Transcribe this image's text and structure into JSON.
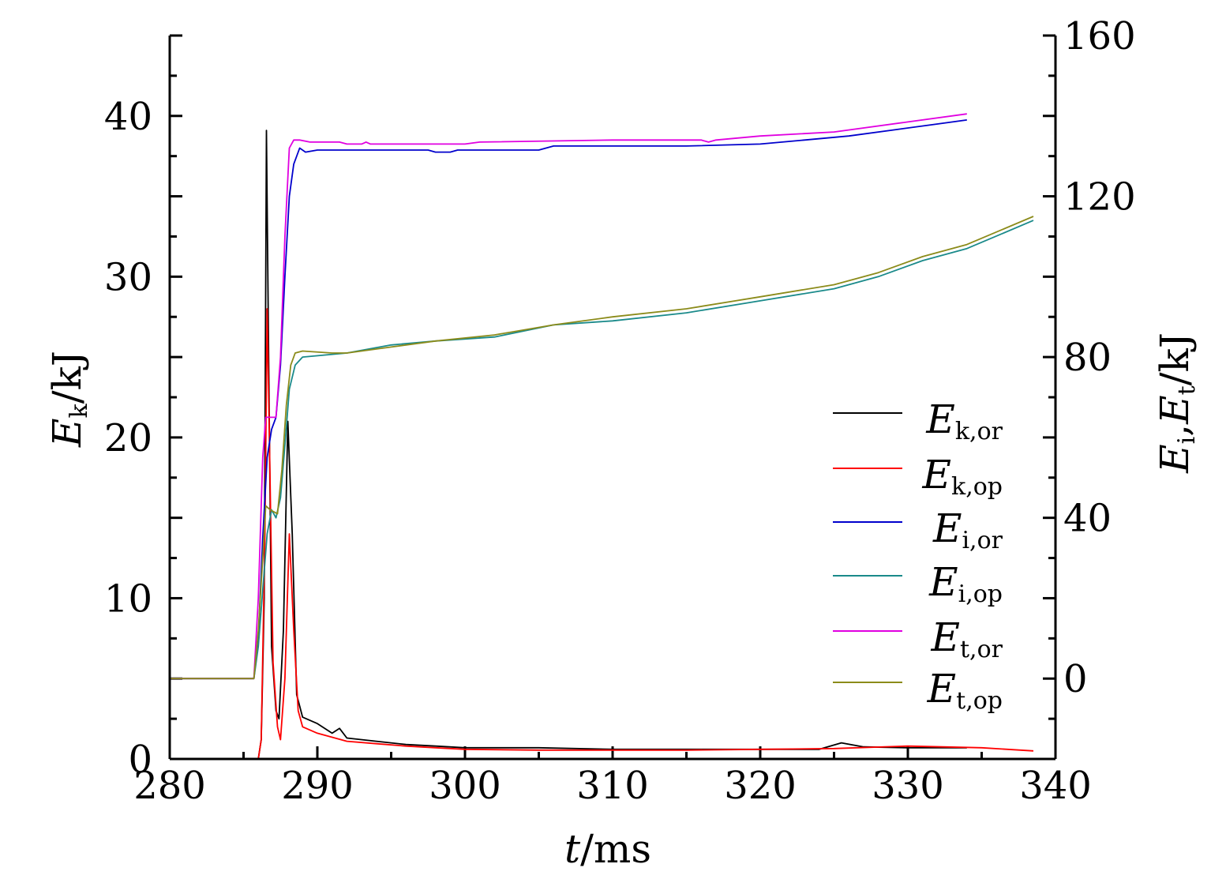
{
  "chart_data": {
    "type": "line",
    "x_axis": {
      "label_var": "t",
      "label_unit": "/ms",
      "range": [
        280,
        340
      ],
      "ticks": [
        "280",
        "290",
        "300",
        "310",
        "320",
        "330",
        "340"
      ],
      "tick_values": [
        280,
        290,
        300,
        310,
        320,
        330,
        340
      ]
    },
    "y_left": {
      "label_var": "E",
      "label_sub": "k",
      "label_unit": "/kJ",
      "range": [
        0,
        45
      ],
      "ticks": [
        "0",
        "10",
        "20",
        "30",
        "40"
      ],
      "tick_values": [
        0,
        10,
        20,
        30,
        40
      ]
    },
    "y_right": {
      "label_var1": "E",
      "label_sub1": "i",
      "label_sep": ",",
      "label_var2": "E",
      "label_sub2": "t",
      "label_unit": "/kJ",
      "range": [
        -20,
        160
      ],
      "ticks": [
        "0",
        "40",
        "80",
        "120",
        "160"
      ],
      "tick_values": [
        0,
        40,
        80,
        120,
        160
      ]
    },
    "grid": false,
    "legend_position": "right-middle",
    "series": [
      {
        "name_var": "E",
        "name_sub": "k,or",
        "axis": "left",
        "color": "#000000",
        "points": [
          [
            280,
            0
          ],
          [
            286.0,
            0
          ],
          [
            286.2,
            1.2
          ],
          [
            286.4,
            10
          ],
          [
            286.55,
            39.1
          ],
          [
            286.7,
            25
          ],
          [
            286.9,
            7
          ],
          [
            287.2,
            3
          ],
          [
            287.4,
            2.5
          ],
          [
            287.7,
            8
          ],
          [
            288.0,
            21
          ],
          [
            288.3,
            14
          ],
          [
            288.6,
            4
          ],
          [
            289.0,
            2.6
          ],
          [
            290,
            2.2
          ],
          [
            291,
            1.6
          ],
          [
            291.5,
            1.9
          ],
          [
            292,
            1.3
          ],
          [
            294,
            1.1
          ],
          [
            296,
            0.9
          ],
          [
            298,
            0.8
          ],
          [
            300,
            0.7
          ],
          [
            305,
            0.7
          ],
          [
            310,
            0.6
          ],
          [
            315,
            0.6
          ],
          [
            320,
            0.6
          ],
          [
            324,
            0.6
          ],
          [
            325.5,
            1.0
          ],
          [
            327,
            0.75
          ],
          [
            330,
            0.7
          ],
          [
            334,
            0.7
          ]
        ]
      },
      {
        "name_var": "E",
        "name_sub": "k,op",
        "axis": "left",
        "color": "#ff0000",
        "points": [
          [
            280,
            0
          ],
          [
            286.0,
            0
          ],
          [
            286.2,
            1.2
          ],
          [
            286.45,
            14
          ],
          [
            286.6,
            28
          ],
          [
            286.75,
            20
          ],
          [
            287.0,
            6
          ],
          [
            287.3,
            2
          ],
          [
            287.5,
            1.2
          ],
          [
            287.8,
            5
          ],
          [
            288.1,
            14
          ],
          [
            288.4,
            8
          ],
          [
            288.7,
            3
          ],
          [
            289.0,
            2
          ],
          [
            290,
            1.6
          ],
          [
            292,
            1.1
          ],
          [
            294,
            0.95
          ],
          [
            296,
            0.8
          ],
          [
            298,
            0.7
          ],
          [
            300,
            0.6
          ],
          [
            305,
            0.55
          ],
          [
            310,
            0.55
          ],
          [
            315,
            0.55
          ],
          [
            320,
            0.6
          ],
          [
            325,
            0.65
          ],
          [
            330,
            0.8
          ],
          [
            335,
            0.7
          ],
          [
            338.5,
            0.5
          ]
        ]
      },
      {
        "name_var": "E",
        "name_sub": "i,or",
        "axis": "right",
        "color": "#0000cc",
        "points": [
          [
            280,
            0
          ],
          [
            285.7,
            0
          ],
          [
            286.0,
            10
          ],
          [
            286.3,
            35
          ],
          [
            286.6,
            55
          ],
          [
            286.9,
            62
          ],
          [
            287.2,
            65
          ],
          [
            287.5,
            78
          ],
          [
            287.8,
            100
          ],
          [
            288.1,
            120
          ],
          [
            288.4,
            128
          ],
          [
            288.8,
            132
          ],
          [
            289.2,
            131
          ],
          [
            290,
            131.5
          ],
          [
            295,
            131.5
          ],
          [
            297.5,
            131.5
          ],
          [
            298,
            131
          ],
          [
            299,
            131
          ],
          [
            299.5,
            131.5
          ],
          [
            305,
            131.5
          ],
          [
            306,
            132.5
          ],
          [
            315,
            132.5
          ],
          [
            320,
            133
          ],
          [
            323,
            134
          ],
          [
            326,
            135
          ],
          [
            329,
            136.5
          ],
          [
            332,
            138
          ],
          [
            334,
            139
          ]
        ]
      },
      {
        "name_var": "E",
        "name_sub": "i,op",
        "axis": "right",
        "color": "#1a8a8a",
        "points": [
          [
            280,
            0
          ],
          [
            285.7,
            0
          ],
          [
            286.0,
            8
          ],
          [
            286.3,
            22
          ],
          [
            286.6,
            36
          ],
          [
            286.9,
            42
          ],
          [
            287.2,
            40
          ],
          [
            287.5,
            45
          ],
          [
            287.8,
            58
          ],
          [
            288.1,
            72
          ],
          [
            288.5,
            78
          ],
          [
            289,
            80
          ],
          [
            292,
            81
          ],
          [
            295,
            83
          ],
          [
            298,
            84
          ],
          [
            302,
            85
          ],
          [
            306,
            88
          ],
          [
            310,
            89
          ],
          [
            315,
            91
          ],
          [
            320,
            94
          ],
          [
            325,
            97
          ],
          [
            328,
            100
          ],
          [
            331,
            104
          ],
          [
            334,
            107
          ],
          [
            338.5,
            114
          ]
        ]
      },
      {
        "name_var": "E",
        "name_sub": "t,or",
        "axis": "right",
        "color": "#e000e0",
        "points": [
          [
            280,
            0
          ],
          [
            285.7,
            0
          ],
          [
            286.0,
            20
          ],
          [
            286.3,
            55
          ],
          [
            286.5,
            65
          ],
          [
            287.2,
            65
          ],
          [
            287.5,
            80
          ],
          [
            287.8,
            110
          ],
          [
            288.1,
            132
          ],
          [
            288.4,
            134
          ],
          [
            288.8,
            134
          ],
          [
            289.5,
            133.5
          ],
          [
            291.5,
            133.5
          ],
          [
            292,
            133
          ],
          [
            293,
            133
          ],
          [
            293.3,
            133.5
          ],
          [
            293.6,
            133
          ],
          [
            300,
            133
          ],
          [
            301,
            133.5
          ],
          [
            310,
            134
          ],
          [
            316,
            134
          ],
          [
            316.5,
            133.5
          ],
          [
            317,
            134
          ],
          [
            320,
            135
          ],
          [
            325,
            136
          ],
          [
            330,
            138.5
          ],
          [
            334,
            140.5
          ]
        ]
      },
      {
        "name_var": "E",
        "name_sub": "t,op",
        "axis": "right",
        "color": "#8b8b1a",
        "points": [
          [
            280,
            0
          ],
          [
            285.7,
            0
          ],
          [
            286.0,
            12
          ],
          [
            286.3,
            30
          ],
          [
            286.5,
            43
          ],
          [
            286.8,
            42
          ],
          [
            287.3,
            41
          ],
          [
            287.6,
            52
          ],
          [
            287.9,
            68
          ],
          [
            288.2,
            78
          ],
          [
            288.5,
            81
          ],
          [
            289,
            81.5
          ],
          [
            291,
            81
          ],
          [
            292,
            81
          ],
          [
            295,
            82.5
          ],
          [
            298,
            84
          ],
          [
            302,
            85.5
          ],
          [
            306,
            88
          ],
          [
            310,
            90
          ],
          [
            315,
            92
          ],
          [
            320,
            95
          ],
          [
            325,
            98
          ],
          [
            328,
            101
          ],
          [
            331,
            105
          ],
          [
            334,
            108
          ],
          [
            338.5,
            115
          ]
        ]
      }
    ]
  }
}
